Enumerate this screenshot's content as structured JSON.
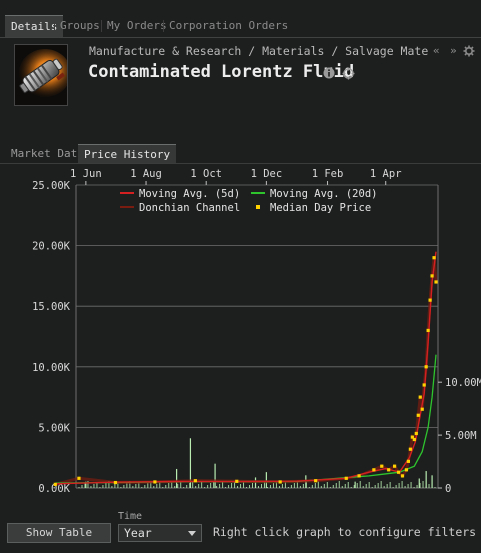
{
  "tabs": [
    {
      "label": "Details"
    },
    {
      "label": "Groups"
    },
    {
      "label": "My Orders"
    },
    {
      "label": "Corporation Orders"
    }
  ],
  "header": {
    "breadcrumb": "Manufacture & Research / Materials / Salvage Materials / Salvage",
    "nav_back": "«",
    "nav_forward": "»",
    "title": "Contaminated Lorentz Fluid"
  },
  "subtabs": [
    {
      "label": "Market Data"
    },
    {
      "label": "Price History"
    }
  ],
  "controls": {
    "show_table_label": "Show Table",
    "time_label": "Time",
    "time_value": "Year",
    "hint": "Right click graph to configure filters"
  },
  "colors": {
    "moving_avg_5d": "#d42020",
    "moving_avg_20d": "#2ec42e",
    "donchian": "#7a1c10",
    "median_day": "#ffd200",
    "volume": "#b8ecb0",
    "grid": "#6e6e6e"
  },
  "chart_data": {
    "type": "line",
    "x_ticks": [
      "1 Jun",
      "1 Aug",
      "1 Oct",
      "1 Dec",
      "1 Feb",
      "1 Apr"
    ],
    "y_ticks": [
      "0.00K",
      "5.00K",
      "10.00K",
      "15.00K",
      "20.00K",
      "25.00K"
    ],
    "ylim": [
      0,
      25000
    ],
    "y2_ticks": [
      "0",
      "5.00M",
      "10.00M"
    ],
    "y2lim": [
      0,
      15500000
    ],
    "legend": [
      "Moving Avg. (5d)",
      "Moving Avg. (20d)",
      "Donchian Channel",
      "Median Day Price"
    ],
    "legend_position": "top",
    "grid": true,
    "series": [
      {
        "name": "Median Day Price",
        "x": [
          "2020-05-01",
          "2020-05-25",
          "2020-07-01",
          "2020-08-10",
          "2020-09-20",
          "2020-11-01",
          "2020-12-15",
          "2021-01-20",
          "2021-02-20",
          "2021-03-05",
          "2021-03-20",
          "2021-03-28",
          "2021-04-04",
          "2021-04-10",
          "2021-04-14",
          "2021-04-18",
          "2021-04-22",
          "2021-04-24",
          "2021-04-26",
          "2021-04-28",
          "2021-04-30",
          "2021-05-02",
          "2021-05-04",
          "2021-05-06",
          "2021-05-08",
          "2021-05-10",
          "2021-05-12",
          "2021-05-14",
          "2021-05-16",
          "2021-05-18",
          "2021-05-20",
          "2021-05-22"
        ],
        "values": [
          300,
          800,
          450,
          500,
          600,
          550,
          500,
          600,
          800,
          1000,
          1500,
          1800,
          1500,
          1800,
          1300,
          1000,
          1500,
          2200,
          3200,
          4200,
          4000,
          4500,
          6000,
          7500,
          6500,
          8500,
          10000,
          13000,
          15500,
          17500,
          19000,
          17000
        ]
      },
      {
        "name": "Moving Avg. (5d)",
        "x": [
          "2020-05-01",
          "2020-07-01",
          "2020-09-01",
          "2020-11-01",
          "2021-01-01",
          "2021-02-20",
          "2021-03-15",
          "2021-04-01",
          "2021-04-15",
          "2021-04-25",
          "2021-05-01",
          "2021-05-06",
          "2021-05-10",
          "2021-05-14",
          "2021-05-18",
          "2021-05-22"
        ],
        "values": [
          350,
          480,
          540,
          530,
          560,
          800,
          1300,
          1600,
          1300,
          2500,
          3800,
          6000,
          7800,
          12000,
          17000,
          19500
        ]
      },
      {
        "name": "Moving Avg. (20d)",
        "x": [
          "2020-05-01",
          "2020-09-01",
          "2021-01-01",
          "2021-03-15",
          "2021-04-15",
          "2021-04-30",
          "2021-05-08",
          "2021-05-14",
          "2021-05-18",
          "2021-05-22"
        ],
        "values": [
          400,
          520,
          540,
          1000,
          1300,
          1800,
          3000,
          5000,
          7500,
          11000
        ]
      },
      {
        "name": "Volume",
        "x": [
          "2020-06-01",
          "2020-09-01",
          "2020-09-15",
          "2020-10-10",
          "2020-11-20",
          "2020-12-01",
          "2021-01-10",
          "2021-03-01",
          "2021-05-05",
          "2021-05-12",
          "2021-05-18"
        ],
        "values": [
          600000,
          1800000,
          4700000,
          2300000,
          1000000,
          1500000,
          1200000,
          600000,
          900000,
          1600000,
          1200000
        ]
      }
    ]
  }
}
